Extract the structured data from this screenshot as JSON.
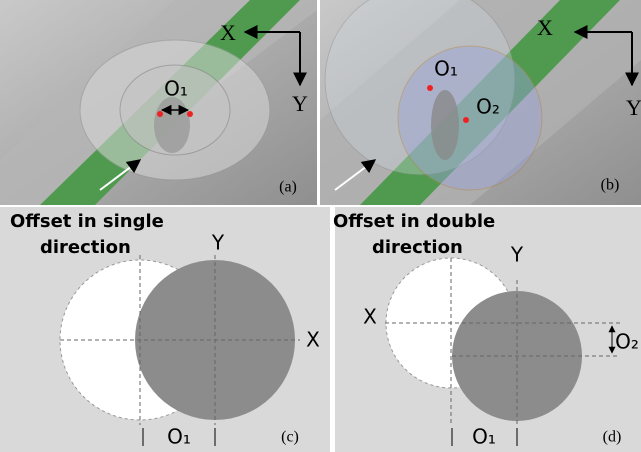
{
  "panels": [
    {
      "tag": "(a)",
      "x_axis": "X",
      "y_axis": "Y",
      "offsets": [
        "O₁"
      ]
    },
    {
      "tag": "(b)",
      "x_axis": "X",
      "y_axis": "Y",
      "offsets": [
        "O₁",
        "O₂"
      ]
    },
    {
      "tag": "(c)",
      "title": [
        "Offset in single",
        "direction"
      ],
      "x_axis": "X",
      "y_axis": "Y",
      "offsets": [
        "O₁"
      ]
    },
    {
      "tag": "(d)",
      "title": [
        "Offset in double",
        "direction"
      ],
      "x_axis": "X",
      "y_axis": "Y",
      "offsets": [
        "O₂",
        "O₁"
      ]
    }
  ]
}
